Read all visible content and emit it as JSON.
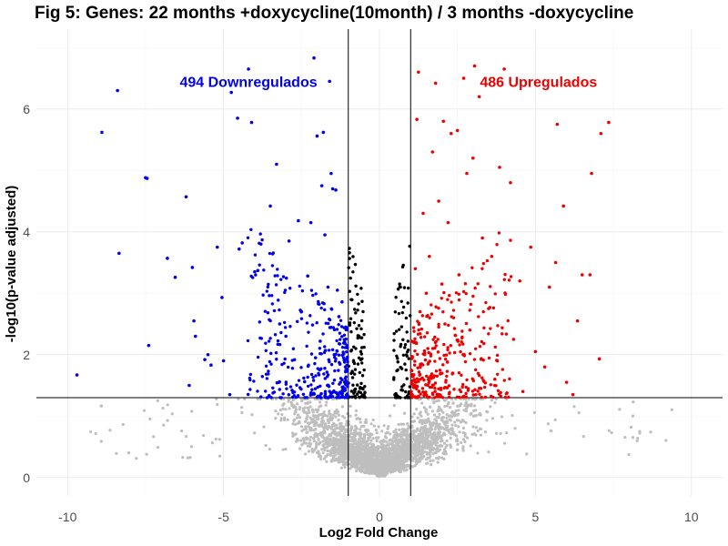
{
  "chart_data": {
    "type": "scatter",
    "title": "Fig 5: Genes: 22 months +doxycycline(10month) / 3 months -doxycycline",
    "xlabel": "Log2 Fold Change",
    "ylabel": "-log10(p-value adjusted)",
    "xlim": [
      -11,
      11
    ],
    "ylim": [
      -0.3,
      7.3
    ],
    "x_ticks": [
      -10,
      -5,
      0,
      5,
      10
    ],
    "y_ticks": [
      0,
      2,
      4,
      6
    ],
    "x_tick_labels": [
      "-10",
      "-5",
      "0",
      "5",
      "10"
    ],
    "y_tick_labels": [
      "0",
      "2",
      "4",
      "6"
    ],
    "grid": true,
    "thresholds": {
      "log2fc": [
        -1,
        1
      ],
      "neg_log10_padj": 1.3
    },
    "colors": {
      "down": "#0000ee",
      "up": "#ee0000",
      "not_significant_fc": "#000000",
      "not_significant": "#bebebe",
      "reference_line": "#000000"
    },
    "annotations": [
      {
        "text": "494 Downregulados",
        "color": "#0000ee",
        "x": -4.2,
        "y": 6.45
      },
      {
        "text": "486 Upregulados",
        "color": "#ee0000",
        "x": 5.1,
        "y": 6.45
      }
    ],
    "series": [
      {
        "name": "Downregulated",
        "color": "#0000ee",
        "points": [
          [
            -9.7,
            1.67
          ],
          [
            -8.9,
            5.62
          ],
          [
            -8.4,
            6.3
          ],
          [
            -8.35,
            3.65
          ],
          [
            -7.5,
            4.88
          ],
          [
            -7.45,
            4.87
          ],
          [
            -7.4,
            2.15
          ],
          [
            -6.8,
            3.57
          ],
          [
            -6.55,
            3.26
          ],
          [
            -6.2,
            4.57
          ],
          [
            -6.1,
            1.5
          ],
          [
            -6.0,
            3.42
          ],
          [
            -5.95,
            2.55
          ],
          [
            -5.9,
            2.3
          ],
          [
            -5.6,
            1.92
          ],
          [
            -5.5,
            2.0
          ],
          [
            -5.4,
            1.83
          ],
          [
            -5.2,
            3.75
          ],
          [
            -5.05,
            2.93
          ],
          [
            -5.0,
            1.9
          ],
          [
            -4.8,
            1.35
          ],
          [
            -4.75,
            6.27
          ],
          [
            -4.55,
            5.85
          ],
          [
            -4.5,
            3.72
          ],
          [
            -4.4,
            3.82
          ],
          [
            -4.2,
            6.65
          ],
          [
            -4.1,
            5.78
          ],
          [
            -4.0,
            3.35
          ],
          [
            -3.9,
            3.37
          ],
          [
            -3.8,
            3.8
          ],
          [
            -3.6,
            1.3
          ],
          [
            -3.5,
            4.42
          ],
          [
            -3.3,
            5.1
          ],
          [
            -3.2,
            2.5
          ],
          [
            -3.0,
            2.3
          ],
          [
            -2.9,
            3.85
          ],
          [
            -2.8,
            1.42
          ],
          [
            -2.6,
            4.18
          ],
          [
            -2.5,
            2.7
          ],
          [
            -2.4,
            1.56
          ],
          [
            -2.3,
            3.28
          ],
          [
            -2.2,
            4.15
          ],
          [
            -2.1,
            6.83
          ],
          [
            -2.05,
            1.95
          ],
          [
            -2.0,
            5.56
          ],
          [
            -1.9,
            2.22
          ],
          [
            -1.85,
            4.75
          ],
          [
            -1.8,
            5.62
          ],
          [
            -1.75,
            3.95
          ],
          [
            -1.65,
            3.1
          ],
          [
            -1.6,
            6.45
          ],
          [
            -1.55,
            4.95
          ],
          [
            -1.5,
            4.7
          ],
          [
            -1.45,
            2.0
          ],
          [
            -1.4,
            4.68
          ],
          [
            -1.35,
            3.05
          ],
          [
            -1.3,
            2.62
          ],
          [
            -1.25,
            1.55
          ],
          [
            -1.2,
            2.86
          ],
          [
            -1.15,
            1.95
          ],
          [
            -1.1,
            1.42
          ]
        ]
      },
      {
        "name": "Upregulated",
        "color": "#ee0000",
        "points": [
          [
            1.05,
            1.35
          ],
          [
            1.1,
            2.2
          ],
          [
            1.15,
            3.4
          ],
          [
            1.2,
            5.83
          ],
          [
            1.25,
            6.6
          ],
          [
            1.3,
            2.7
          ],
          [
            1.35,
            1.85
          ],
          [
            1.4,
            4.3
          ],
          [
            1.5,
            3.0
          ],
          [
            1.55,
            2.1
          ],
          [
            1.6,
            3.6
          ],
          [
            1.7,
            5.3
          ],
          [
            1.8,
            6.42
          ],
          [
            1.9,
            4.5
          ],
          [
            2.0,
            3.15
          ],
          [
            2.05,
            5.8
          ],
          [
            2.1,
            2.5
          ],
          [
            2.2,
            4.15
          ],
          [
            2.3,
            5.6
          ],
          [
            2.35,
            1.7
          ],
          [
            2.5,
            5.65
          ],
          [
            2.55,
            3.3
          ],
          [
            2.7,
            6.5
          ],
          [
            2.8,
            4.95
          ],
          [
            2.9,
            2.4
          ],
          [
            3.0,
            5.2
          ],
          [
            3.05,
            6.7
          ],
          [
            3.2,
            6.2
          ],
          [
            3.3,
            3.9
          ],
          [
            3.5,
            2.75
          ],
          [
            3.6,
            3.6
          ],
          [
            3.7,
            1.6
          ],
          [
            3.85,
            5.05
          ],
          [
            4.0,
            6.65
          ],
          [
            4.2,
            4.8
          ],
          [
            4.3,
            2.25
          ],
          [
            4.5,
            3.2
          ],
          [
            4.6,
            1.4
          ],
          [
            4.85,
            3.75
          ],
          [
            5.0,
            2.05
          ],
          [
            5.3,
            1.8
          ],
          [
            5.45,
            3.1
          ],
          [
            5.65,
            3.5
          ],
          [
            5.7,
            5.75
          ],
          [
            5.9,
            4.42
          ],
          [
            6.0,
            1.55
          ],
          [
            6.2,
            1.35
          ],
          [
            6.35,
            2.55
          ],
          [
            6.5,
            3.3
          ],
          [
            6.75,
            3.3
          ],
          [
            6.8,
            4.95
          ],
          [
            7.05,
            1.93
          ],
          [
            7.1,
            5.6
          ],
          [
            7.35,
            5.78
          ]
        ]
      }
    ]
  }
}
